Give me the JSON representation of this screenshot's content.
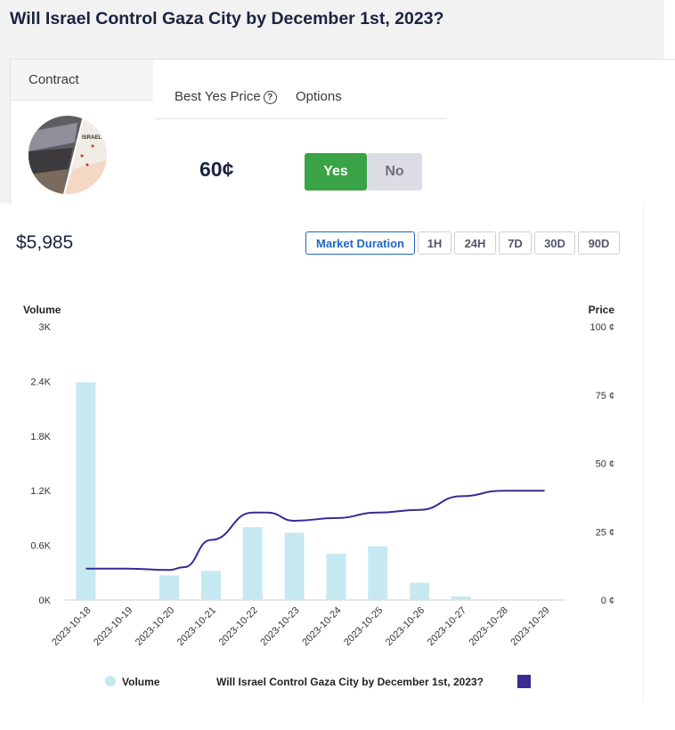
{
  "page": {
    "title": "Will Israel Control Gaza City by December 1st, 2023?"
  },
  "contract": {
    "tab_label": "Contract",
    "columns": {
      "best_yes_price": "Best Yes Price",
      "options": "Options"
    },
    "price": "60¢",
    "yes_label": "Yes",
    "no_label": "No",
    "image_icon": "map-thumbnail-icon",
    "image_text": "ISRAEL"
  },
  "stats": {
    "total_volume": "$5,985"
  },
  "time_ranges": [
    {
      "label": "Market Duration",
      "active": true
    },
    {
      "label": "1H",
      "active": false
    },
    {
      "label": "24H",
      "active": false
    },
    {
      "label": "7D",
      "active": false
    },
    {
      "label": "30D",
      "active": false
    },
    {
      "label": "90D",
      "active": false
    }
  ],
  "chart_data": {
    "type": "bar",
    "categories": [
      "2023-10-18",
      "2023-10-19",
      "2023-10-20",
      "2023-10-21",
      "2023-10-22",
      "2023-10-23",
      "2023-10-24",
      "2023-10-25",
      "2023-10-26",
      "2023-10-27",
      "2023-10-28",
      "2023-10-29"
    ],
    "y_left": {
      "label": "Volume",
      "ticks": [
        "0K",
        "0.6K",
        "1.2K",
        "1.8K",
        "2.4K",
        "3K"
      ],
      "range": [
        0,
        3000
      ]
    },
    "y_right": {
      "label": "Price",
      "ticks": [
        "0 ¢",
        "25 ¢",
        "50 ¢",
        "75 ¢",
        "100 ¢"
      ],
      "range": [
        0,
        100
      ]
    },
    "series": [
      {
        "name": "Volume",
        "type": "bar",
        "color": "#c6e9f1",
        "values": [
          2390,
          0,
          270,
          320,
          800,
          740,
          510,
          590,
          190,
          40,
          0,
          0
        ]
      },
      {
        "name": "Will Israel Control Gaza City by December 1st, 2023?",
        "type": "line",
        "color": "#3a2a94",
        "x": [
          "2023-10-18",
          "2023-10-19",
          "2023-10-20",
          "2023-10-20",
          "2023-10-21",
          "2023-10-22",
          "2023-10-22",
          "2023-10-23",
          "2023-10-24",
          "2023-10-25",
          "2023-10-26",
          "2023-10-27",
          "2023-10-28",
          "2023-10-29"
        ],
        "values": [
          11.5,
          11.5,
          11,
          12,
          22,
          32,
          32,
          29,
          30,
          32,
          33,
          38,
          40,
          40
        ]
      }
    ],
    "legend_position": "bottom"
  },
  "colors": {
    "accent": "#1f66c6",
    "yes": "#3aa346",
    "no": "#dcdce4",
    "bar": "#c6e9f1",
    "line": "#3a2a94",
    "title": "#1c2340"
  }
}
